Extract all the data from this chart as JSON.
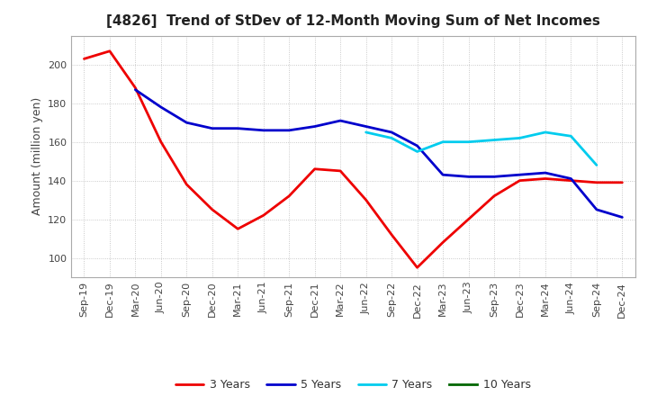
{
  "title": "[4826]  Trend of StDev of 12-Month Moving Sum of Net Incomes",
  "ylabel": "Amount (million yen)",
  "background_color": "#ffffff",
  "grid_color": "#bbbbbb",
  "ylim": [
    90,
    215
  ],
  "yticks": [
    100,
    120,
    140,
    160,
    180,
    200
  ],
  "series_order": [
    "3 Years",
    "5 Years",
    "7 Years",
    "10 Years"
  ],
  "series": {
    "3 Years": {
      "color": "#ee0000",
      "data": [
        203,
        207,
        188,
        160,
        138,
        125,
        115,
        122,
        132,
        146,
        145,
        130,
        112,
        95,
        108,
        120,
        132,
        140,
        141,
        140,
        139,
        139
      ]
    },
    "5 Years": {
      "color": "#0000cc",
      "data": [
        null,
        null,
        187,
        178,
        170,
        167,
        167,
        166,
        166,
        168,
        171,
        168,
        165,
        158,
        143,
        142,
        142,
        143,
        144,
        141,
        125,
        121
      ]
    },
    "7 Years": {
      "color": "#00ccee",
      "data": [
        null,
        null,
        null,
        null,
        null,
        null,
        null,
        null,
        null,
        null,
        null,
        165,
        162,
        155,
        160,
        160,
        161,
        162,
        165,
        163,
        148,
        null
      ]
    },
    "10 Years": {
      "color": "#006600",
      "data": [
        null,
        null,
        null,
        null,
        null,
        null,
        null,
        null,
        null,
        null,
        null,
        null,
        null,
        null,
        null,
        null,
        null,
        null,
        null,
        null,
        null,
        null
      ]
    }
  },
  "x_labels": [
    "Sep-19",
    "Dec-19",
    "Mar-20",
    "Jun-20",
    "Sep-20",
    "Dec-20",
    "Mar-21",
    "Jun-21",
    "Sep-21",
    "Dec-21",
    "Mar-22",
    "Jun-22",
    "Sep-22",
    "Dec-22",
    "Mar-23",
    "Jun-23",
    "Sep-23",
    "Dec-23",
    "Mar-24",
    "Jun-24",
    "Sep-24",
    "Dec-24"
  ],
  "line_width": 2.0,
  "title_fontsize": 11,
  "axis_label_fontsize": 9,
  "tick_fontsize": 8,
  "legend_fontsize": 9
}
